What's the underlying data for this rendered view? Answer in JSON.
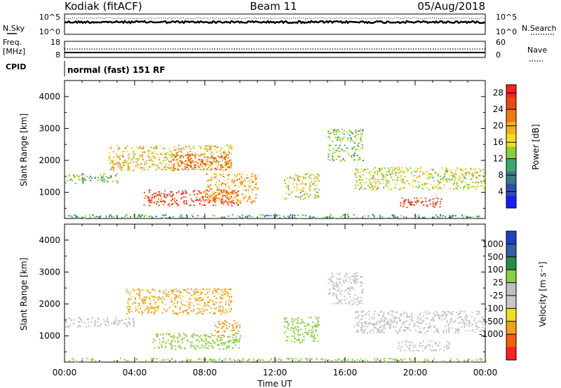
{
  "header": {
    "site": "Kodiak (fitACF)",
    "beam": "Beam 11",
    "date": "05/Aug/2018"
  },
  "panels": {
    "nsky": {
      "left_label": "N.Sky",
      "right_label": "N.Search",
      "y_top_left": "10^5",
      "y_bottom_left": "10^0",
      "y_top_right": "10^5",
      "y_bottom_right": "10^0"
    },
    "freq": {
      "left_label_1": "Freq.",
      "left_label_2": "[MHz]",
      "right_label": "Nave",
      "y_top_left": "18",
      "y_bottom_left": "8",
      "y_top_right": "60",
      "y_bottom_right": "0"
    },
    "cpid": {
      "label": "CPID",
      "mode": "normal (fast) 151 RF"
    }
  },
  "colors": {
    "power_scale": [
      "#1a1aff",
      "#2a4fb0",
      "#3b7a8a",
      "#3aa86c",
      "#8ccf3a",
      "#f0e020",
      "#f5b020",
      "#f07a10",
      "#e84a10",
      "#ff2020"
    ],
    "velocity_scale": [
      "#2040c0",
      "#3060a8",
      "#2a8a4a",
      "#8ad040",
      "#c0c0c0",
      "#c8c8c8",
      "#f0e020",
      "#f0a020",
      "#f06010",
      "#ff2020"
    ]
  },
  "chart_data": [
    {
      "type": "heatmap",
      "title": "Power",
      "xlabel": "Time UT",
      "ylabel": "Slant Range [km]",
      "x_ticks": [
        "00:00",
        "04:00",
        "08:00",
        "12:00",
        "16:00",
        "20:00",
        "00:00"
      ],
      "y_ticks": [
        "1000",
        "2000",
        "3000",
        "4000"
      ],
      "xlim_hours": [
        0,
        24
      ],
      "ylim_km": [
        180,
        4500
      ],
      "colorbar_label": "Power [dB]",
      "colorbar_ticks": [
        "4",
        "8",
        "12",
        "16",
        "20",
        "24",
        "28"
      ],
      "colorbar_range": [
        0,
        30
      ],
      "features": [
        {
          "t0": 0.0,
          "t1": 24.0,
          "r0": 200,
          "r1": 320,
          "value": 10
        },
        {
          "t0": 0.0,
          "t1": 3.0,
          "r0": 1300,
          "r1": 1600,
          "value": 12
        },
        {
          "t0": 2.5,
          "t1": 9.5,
          "r0": 1700,
          "r1": 2500,
          "value": 18
        },
        {
          "t0": 6.0,
          "t1": 9.5,
          "r0": 1700,
          "r1": 2200,
          "value": 24
        },
        {
          "t0": 4.5,
          "t1": 10.0,
          "r0": 600,
          "r1": 1100,
          "value": 27
        },
        {
          "t0": 8.0,
          "t1": 11.0,
          "r0": 700,
          "r1": 1600,
          "value": 20
        },
        {
          "t0": 12.5,
          "t1": 14.5,
          "r0": 800,
          "r1": 1600,
          "value": 16
        },
        {
          "t0": 15.0,
          "t1": 17.0,
          "r0": 2000,
          "r1": 3000,
          "value": 13
        },
        {
          "t0": 16.5,
          "t1": 24.0,
          "r0": 1100,
          "r1": 1800,
          "value": 16
        },
        {
          "t0": 19.0,
          "t1": 21.5,
          "r0": 550,
          "r1": 850,
          "value": 27
        }
      ]
    },
    {
      "type": "heatmap",
      "title": "Velocity",
      "xlabel": "Time UT",
      "ylabel": "Slant Range [km]",
      "x_ticks": [
        "00:00",
        "04:00",
        "08:00",
        "12:00",
        "16:00",
        "20:00",
        "00:00"
      ],
      "y_ticks": [
        "1000",
        "2000",
        "3000",
        "4000"
      ],
      "xlim_hours": [
        0,
        24
      ],
      "ylim_km": [
        180,
        4500
      ],
      "colorbar_label": "Velocity [m s⁻¹]",
      "colorbar_ticks": [
        "1000",
        "500",
        "100",
        "25",
        "-25",
        "-100",
        "-500",
        "-1000"
      ],
      "features": [
        {
          "t0": 0.0,
          "t1": 24.0,
          "r0": 200,
          "r1": 320,
          "value": 40
        },
        {
          "t0": 0.0,
          "t1": 4.0,
          "r0": 1300,
          "r1": 1600,
          "value": 0
        },
        {
          "t0": 3.5,
          "t1": 9.5,
          "r0": 1700,
          "r1": 2500,
          "value": -150
        },
        {
          "t0": 5.0,
          "t1": 10.0,
          "r0": 600,
          "r1": 1100,
          "value": 60
        },
        {
          "t0": 8.5,
          "t1": 10.0,
          "r0": 1000,
          "r1": 1500,
          "value": -300
        },
        {
          "t0": 12.5,
          "t1": 14.5,
          "r0": 800,
          "r1": 1600,
          "value": 60
        },
        {
          "t0": 15.0,
          "t1": 17.0,
          "r0": 2000,
          "r1": 3000,
          "value": 0
        },
        {
          "t0": 16.5,
          "t1": 24.0,
          "r0": 1100,
          "r1": 1800,
          "value": 5
        },
        {
          "t0": 19.0,
          "t1": 22.0,
          "r0": 550,
          "r1": 850,
          "value": -5
        }
      ]
    }
  ]
}
